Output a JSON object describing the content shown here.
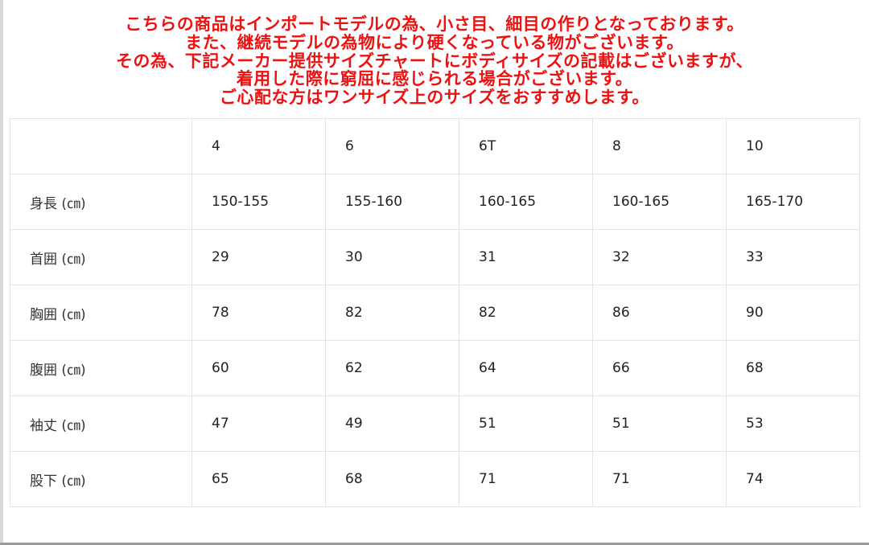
{
  "notice": {
    "color": "#ee1111",
    "lines": [
      "こちらの商品はインポートモデルの為、小さ目、細目の作りとなっております。",
      "また、継続モデルの為物により硬くなっている物がございます。",
      "その為、下記メーカー提供サイズチャートにボディサイズの記載はございますが、",
      "着用した際に窮屈に感じられる場合がございます。",
      "ご心配な方はワンサイズ上のサイズをおすすめします。"
    ]
  },
  "size_table": {
    "header": [
      "",
      "4",
      "6",
      "6T",
      "8",
      "10"
    ],
    "rows": [
      [
        "身長 (㎝)",
        "150-155",
        "155-160",
        "160-165",
        "160-165",
        "165-170"
      ],
      [
        "首囲 (㎝)",
        "29",
        "30",
        "31",
        "32",
        "33"
      ],
      [
        "胸囲 (㎝)",
        "78",
        "82",
        "82",
        "86",
        "90"
      ],
      [
        "腹囲 (㎝)",
        "60",
        "62",
        "64",
        "66",
        "68"
      ],
      [
        "袖丈 (㎝)",
        "47",
        "49",
        "51",
        "51",
        "53"
      ],
      [
        "股下 (㎝)",
        "65",
        "68",
        "71",
        "71",
        "74"
      ]
    ]
  }
}
